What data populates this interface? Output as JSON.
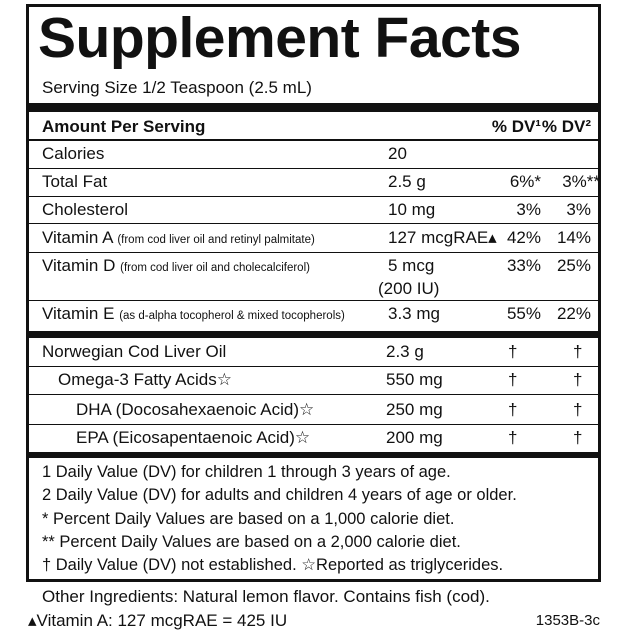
{
  "title": "Supplement Facts",
  "serving_size": "Serving Size 1/2 Teaspoon (2.5 mL)",
  "header": {
    "amount": "Amount Per Serving",
    "dv1": "% DV¹",
    "dv2": "% DV²"
  },
  "nutrients": [
    {
      "name": "Calories",
      "amount": "20"
    },
    {
      "name": "Total Fat",
      "amount": "2.5 g",
      "dv1": "6%*",
      "dv2": "3%**"
    },
    {
      "name": "Cholesterol",
      "amount": "10 mg",
      "dv1": "3%",
      "dv2": "3%"
    },
    {
      "name": "Vitamin A",
      "note": "(from cod liver oil and retinyl palmitate)",
      "amount": "127 mcgRAE▴",
      "dv1": "42%",
      "dv2": "14%"
    },
    {
      "name": "Vitamin D",
      "note": "(from cod liver oil and cholecalciferol)",
      "amount": "5 mcg",
      "amount_alt": "(200 IU)",
      "dv1": "33%",
      "dv2": "25%"
    },
    {
      "name": "Vitamin E",
      "note": "(as d-alpha tocopherol & mixed tocopherols)",
      "amount": "3.3 mg",
      "dv1": "55%",
      "dv2": "22%"
    }
  ],
  "ingredients": [
    {
      "name": "Norwegian Cod Liver Oil",
      "amount": "2.3 g",
      "dv1": "†",
      "dv2": "†"
    },
    {
      "name": "Omega-3 Fatty Acids☆",
      "amount": "550 mg",
      "dv1": "†",
      "dv2": "†"
    },
    {
      "name": "DHA (Docosahexaenoic Acid)☆",
      "amount": "250 mg",
      "dv1": "†",
      "dv2": "†"
    },
    {
      "name": "EPA (Eicosapentaenoic Acid)☆",
      "amount": "200 mg",
      "dv1": "†",
      "dv2": "†"
    }
  ],
  "footnotes": [
    "1 Daily Value (DV) for children 1 through 3 years of age.",
    "2 Daily Value (DV) for adults and children 4 years of age or older.",
    "* Percent Daily Values are based on a 1,000 calorie diet.",
    "** Percent Daily Values are based on a 2,000 calorie diet.",
    "† Daily Value (DV) not established. ☆Reported as triglycerides."
  ],
  "other_ingredients": "Other Ingredients:  Natural lemon flavor. Contains fish (cod).",
  "vitamin_a_note": "▴Vitamin A: 127 mcgRAE = 425 IU",
  "code": "1353B-3c"
}
